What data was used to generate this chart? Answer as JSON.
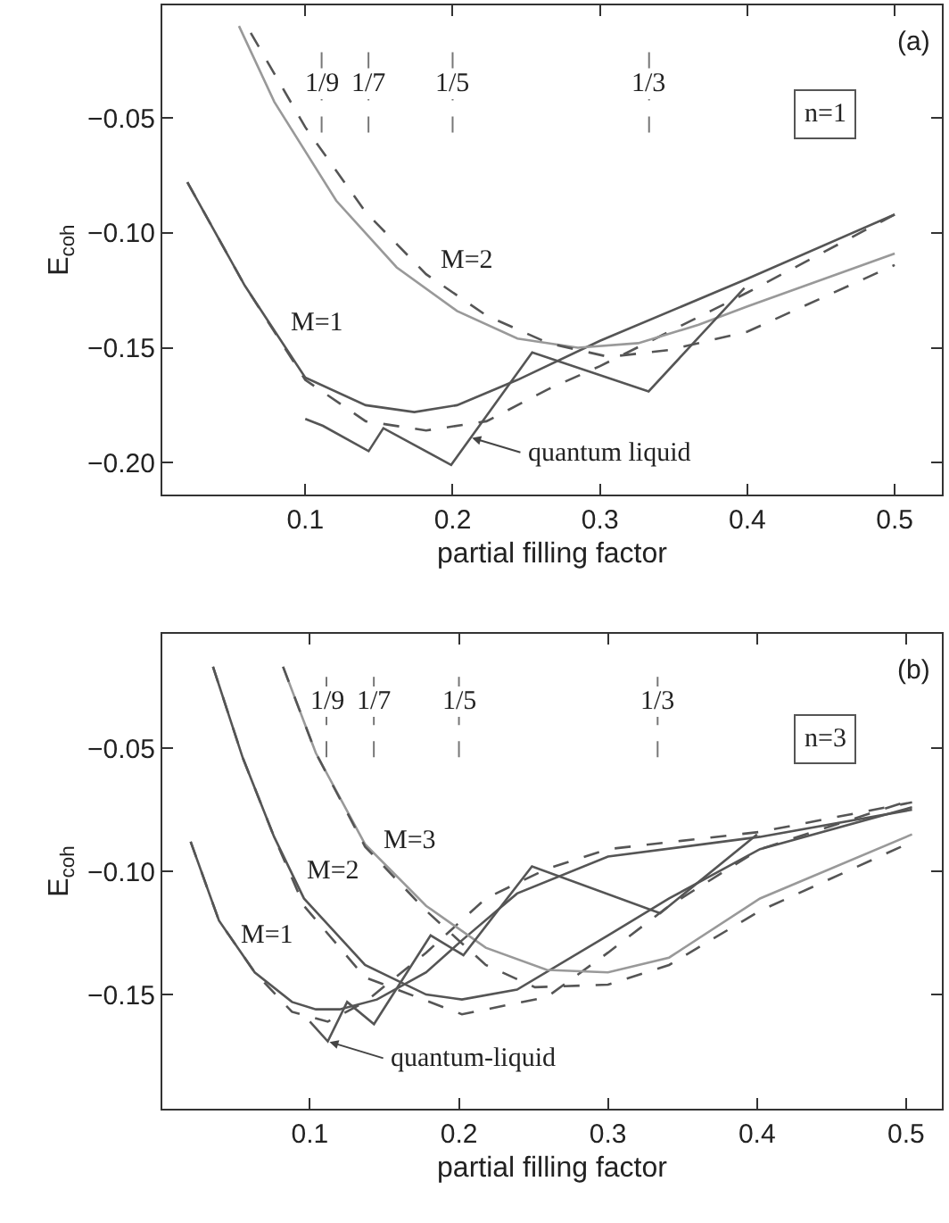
{
  "chart_data": [
    {
      "type": "line",
      "xlabel": "partial filling factor",
      "ylabel": "E$_{coh}$",
      "xlim": [
        0.003,
        0.532
      ],
      "ylim": [
        -0.214,
        -0.001
      ],
      "xticks": [
        0.1,
        0.2,
        0.3,
        0.4,
        0.5
      ],
      "yticks": [
        {
          "value": -0.05,
          "label": "−0.05"
        },
        {
          "value": -0.1,
          "label": "−0.10"
        },
        {
          "value": -0.15,
          "label": "−0.15"
        },
        {
          "value": -0.2,
          "label": "−0.20"
        }
      ],
      "series": [
        {
          "color": "#555555",
          "line_style": "solid",
          "x": [
            0.02,
            0.059,
            0.1,
            0.141,
            0.174,
            0.203,
            0.244,
            0.3,
            0.4,
            0.5
          ],
          "values": [
            -0.078,
            -0.123,
            -0.163,
            -0.175,
            -0.178,
            -0.175,
            -0.164,
            -0.147,
            -0.12,
            -0.092
          ]
        },
        {
          "color": "#555555",
          "line_style": "dashed",
          "x": [
            0.02,
            0.059,
            0.1,
            0.141,
            0.182,
            0.223,
            0.265,
            0.3,
            0.347,
            0.4,
            0.5
          ],
          "values": [
            -0.078,
            -0.123,
            -0.164,
            -0.182,
            -0.186,
            -0.182,
            -0.168,
            -0.158,
            -0.143,
            -0.126,
            -0.092
          ]
        },
        {
          "color": "#999999",
          "line_style": "solid",
          "x": [
            0.055,
            0.079,
            0.121,
            0.162,
            0.203,
            0.244,
            0.285,
            0.326,
            0.367,
            0.4,
            0.5
          ],
          "values": [
            -0.01,
            -0.043,
            -0.086,
            -0.115,
            -0.134,
            -0.146,
            -0.15,
            -0.148,
            -0.14,
            -0.132,
            -0.109
          ]
        },
        {
          "color": "#555555",
          "line_style": "dashed",
          "x": [
            0.063,
            0.1,
            0.141,
            0.182,
            0.223,
            0.265,
            0.306,
            0.347,
            0.4,
            0.5
          ],
          "values": [
            -0.013,
            -0.054,
            -0.091,
            -0.118,
            -0.136,
            -0.148,
            -0.154,
            -0.151,
            -0.143,
            -0.114
          ]
        },
        {
          "color": "#555555",
          "line_style": "solid",
          "x": [
            0.1,
            0.112,
            0.143,
            0.153,
            0.199,
            0.254,
            0.333,
            0.398
          ],
          "values": [
            -0.181,
            -0.184,
            -0.195,
            -0.185,
            -0.201,
            -0.152,
            -0.169,
            -0.124
          ]
        }
      ],
      "ref_lines": [
        {
          "axis": "x",
          "value": 0.1111,
          "line_style": "dashed",
          "color": "#777777"
        },
        {
          "axis": "x",
          "value": 0.1429,
          "line_style": "dashed",
          "color": "#777777"
        },
        {
          "axis": "x",
          "value": 0.2,
          "line_style": "dashed",
          "color": "#777777"
        },
        {
          "axis": "x",
          "value": 0.3333,
          "line_style": "dashed",
          "color": "#777777"
        }
      ],
      "annotations": [
        "(a)",
        "n=1",
        "M=1",
        "M=2",
        {
          "text": "1/9",
          "x": 0.1111,
          "y": -0.035
        },
        {
          "text": "1/7",
          "x": 0.1429,
          "y": -0.035
        },
        {
          "text": "1/5",
          "x": 0.2,
          "y": -0.035
        },
        {
          "text": "1/3",
          "x": 0.3333,
          "y": -0.035
        },
        {
          "text": "quantum liquid",
          "x": 0.212,
          "y": -0.189
        }
      ]
    },
    {
      "type": "line",
      "xlabel": "partial filling factor",
      "ylabel": "E$_{coh}$",
      "xlim": [
        0.001,
        0.524
      ],
      "ylim": [
        -0.1965,
        -0.0035
      ],
      "xticks": [
        0.1,
        0.2,
        0.3,
        0.4,
        0.5
      ],
      "yticks": [
        {
          "value": -0.05,
          "label": "−0.05"
        },
        {
          "value": -0.1,
          "label": "−0.10"
        },
        {
          "value": -0.15,
          "label": "−0.15"
        }
      ],
      "series": [
        {
          "color": "#555555",
          "line_style": "solid",
          "x": [
            0.02,
            0.039,
            0.063,
            0.088,
            0.104,
            0.12,
            0.145,
            0.178,
            0.202,
            0.239,
            0.3,
            0.402,
            0.504
          ],
          "values": [
            -0.088,
            -0.12,
            -0.141,
            -0.153,
            -0.156,
            -0.156,
            -0.152,
            -0.141,
            -0.128,
            -0.109,
            -0.094,
            -0.086,
            -0.075
          ]
        },
        {
          "color": "#555555",
          "line_style": "dashed",
          "x": [
            0.02,
            0.039,
            0.063,
            0.088,
            0.112,
            0.137,
            0.178,
            0.218,
            0.259,
            0.3,
            0.402,
            0.504
          ],
          "values": [
            -0.088,
            -0.12,
            -0.141,
            -0.157,
            -0.161,
            -0.153,
            -0.133,
            -0.111,
            -0.099,
            -0.091,
            -0.084,
            -0.072
          ]
        },
        {
          "color": "#555555",
          "line_style": "solid",
          "x": [
            0.035,
            0.055,
            0.076,
            0.096,
            0.137,
            0.178,
            0.202,
            0.239,
            0.3,
            0.341,
            0.402,
            0.504
          ],
          "values": [
            -0.017,
            -0.054,
            -0.086,
            -0.111,
            -0.138,
            -0.15,
            -0.152,
            -0.148,
            -0.126,
            -0.111,
            -0.091,
            -0.074
          ]
        },
        {
          "color": "#555555",
          "line_style": "dashed",
          "x": [
            0.035,
            0.055,
            0.076,
            0.096,
            0.137,
            0.202,
            0.259,
            0.3,
            0.341,
            0.402,
            0.504
          ],
          "values": [
            -0.017,
            -0.054,
            -0.086,
            -0.114,
            -0.143,
            -0.158,
            -0.151,
            -0.133,
            -0.114,
            -0.091,
            -0.071
          ]
        },
        {
          "color": "#999999",
          "line_style": "solid",
          "x": [
            0.082,
            0.104,
            0.137,
            0.178,
            0.218,
            0.259,
            0.3,
            0.341,
            0.402,
            0.504
          ],
          "values": [
            -0.017,
            -0.052,
            -0.089,
            -0.114,
            -0.131,
            -0.14,
            -0.141,
            -0.135,
            -0.111,
            -0.085
          ]
        },
        {
          "color": "#555555",
          "line_style": "dashed",
          "x": [
            0.082,
            0.104,
            0.137,
            0.178,
            0.218,
            0.251,
            0.3,
            0.341,
            0.402,
            0.504
          ],
          "values": [
            -0.017,
            -0.052,
            -0.09,
            -0.116,
            -0.138,
            -0.147,
            -0.146,
            -0.138,
            -0.116,
            -0.088
          ]
        },
        {
          "color": "#555555",
          "line_style": "solid",
          "x": [
            0.1,
            0.112,
            0.125,
            0.143,
            0.181,
            0.203,
            0.249,
            0.335,
            0.4
          ],
          "values": [
            -0.161,
            -0.169,
            -0.153,
            -0.162,
            -0.126,
            -0.134,
            -0.098,
            -0.117,
            -0.085
          ]
        }
      ],
      "ref_lines": [
        {
          "axis": "x",
          "value": 0.1111,
          "line_style": "dashed",
          "color": "#777777"
        },
        {
          "axis": "x",
          "value": 0.1429,
          "line_style": "dashed",
          "color": "#777777"
        },
        {
          "axis": "x",
          "value": 0.2,
          "line_style": "dashed",
          "color": "#777777"
        },
        {
          "axis": "x",
          "value": 0.3333,
          "line_style": "dashed",
          "color": "#777777"
        }
      ],
      "annotations": [
        "(b)",
        "n=3",
        "M=1",
        "M=2",
        "M=3",
        {
          "text": "1/9",
          "x": 0.1111,
          "y": -0.031
        },
        {
          "text": "1/7",
          "x": 0.1429,
          "y": -0.031
        },
        {
          "text": "1/5",
          "x": 0.2,
          "y": -0.031
        },
        {
          "text": "1/3",
          "x": 0.3333,
          "y": -0.031
        },
        {
          "text": "quantum-liquid",
          "x": 0.112,
          "y": -0.169
        }
      ]
    }
  ]
}
